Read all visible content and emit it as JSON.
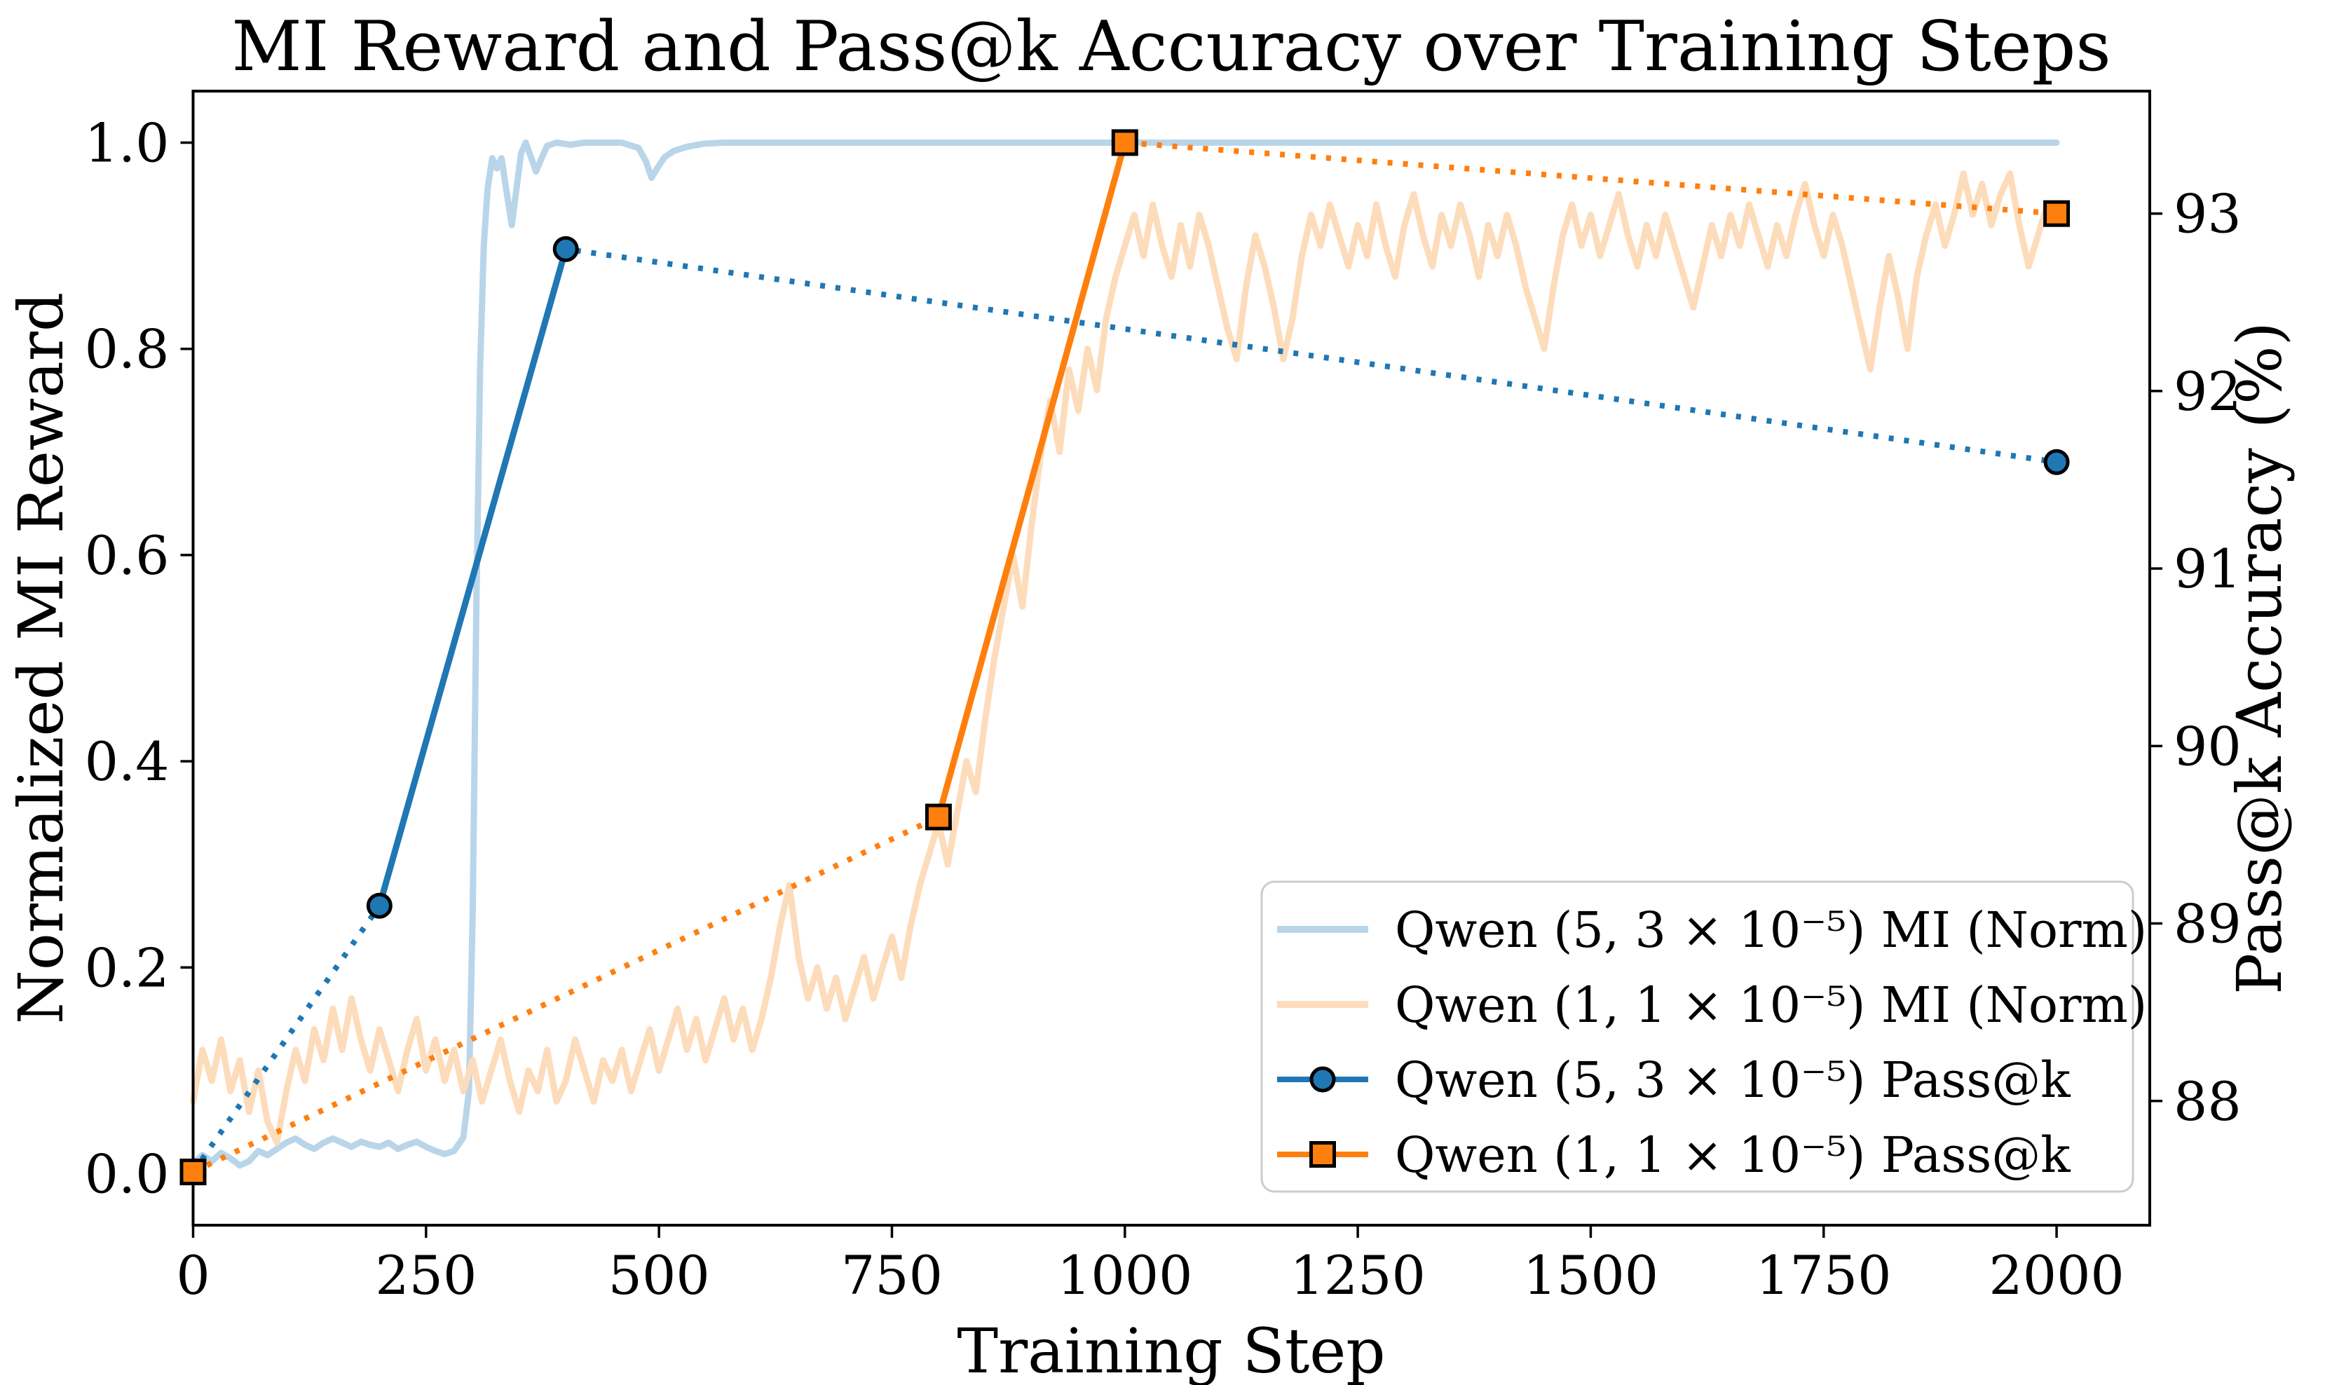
{
  "chart_data": {
    "type": "line",
    "title": "MI Reward and Pass@k Accuracy over Training Steps",
    "xlabel": "Training Step",
    "ylabel_left": "Normalized MI Reward",
    "ylabel_right": "Pass@k Accuracy (%)",
    "xlim": [
      0,
      2100
    ],
    "x_ticks": [
      0,
      250,
      500,
      750,
      1000,
      1250,
      1500,
      1750,
      2000
    ],
    "x_tick_labels": [
      "0",
      "250",
      "500",
      "750",
      "1000",
      "1250",
      "1500",
      "1750",
      "2000"
    ],
    "ylim_left": [
      -0.05,
      1.05
    ],
    "y_ticks_left": [
      0.0,
      0.2,
      0.4,
      0.6,
      0.8,
      1.0
    ],
    "y_tick_labels_left": [
      "0.0",
      "0.2",
      "0.4",
      "0.6",
      "0.8",
      "1.0"
    ],
    "ylim_right": [
      87.3,
      93.69
    ],
    "y_ticks_right": [
      88,
      89,
      90,
      91,
      92,
      93
    ],
    "y_tick_labels_right": [
      "88",
      "89",
      "90",
      "91",
      "92",
      "93"
    ],
    "grid": false,
    "legend_position": "lower right",
    "colors": {
      "mi_fast": "#b9d5ea",
      "mi_slow": "#fddcbb",
      "passk_fast": "#1f77b4",
      "passk_slow": "#ff7f0e",
      "marker_edge": "#000000",
      "legend_border": "#cccccc",
      "axis": "#000000"
    },
    "series": [
      {
        "name": "Qwen (5, 3 × 10⁻⁵) MI (Norm)",
        "axis": "left",
        "style": "solid",
        "color_key": "mi_fast",
        "width": 9,
        "points": [
          [
            0,
            0.01
          ],
          [
            10,
            0.018
          ],
          [
            20,
            0.012
          ],
          [
            30,
            0.02
          ],
          [
            40,
            0.015
          ],
          [
            50,
            0.008
          ],
          [
            60,
            0.012
          ],
          [
            70,
            0.022
          ],
          [
            80,
            0.018
          ],
          [
            90,
            0.024
          ],
          [
            100,
            0.03
          ],
          [
            110,
            0.034
          ],
          [
            120,
            0.028
          ],
          [
            130,
            0.024
          ],
          [
            140,
            0.03
          ],
          [
            150,
            0.034
          ],
          [
            160,
            0.03
          ],
          [
            170,
            0.026
          ],
          [
            180,
            0.031
          ],
          [
            190,
            0.028
          ],
          [
            200,
            0.026
          ],
          [
            210,
            0.03
          ],
          [
            220,
            0.024
          ],
          [
            230,
            0.028
          ],
          [
            240,
            0.031
          ],
          [
            250,
            0.026
          ],
          [
            260,
            0.022
          ],
          [
            270,
            0.019
          ],
          [
            280,
            0.022
          ],
          [
            290,
            0.035
          ],
          [
            296,
            0.08
          ],
          [
            300,
            0.25
          ],
          [
            304,
            0.55
          ],
          [
            308,
            0.78
          ],
          [
            312,
            0.9
          ],
          [
            316,
            0.955
          ],
          [
            321,
            0.985
          ],
          [
            326,
            0.975
          ],
          [
            331,
            0.985
          ],
          [
            336,
            0.955
          ],
          [
            342,
            0.92
          ],
          [
            347,
            0.955
          ],
          [
            352,
            0.99
          ],
          [
            357,
            1.0
          ],
          [
            363,
            0.985
          ],
          [
            368,
            0.972
          ],
          [
            374,
            0.985
          ],
          [
            380,
            0.997
          ],
          [
            390,
            1.0
          ],
          [
            405,
            0.998
          ],
          [
            420,
            1.0
          ],
          [
            440,
            1.0
          ],
          [
            460,
            1.0
          ],
          [
            478,
            0.995
          ],
          [
            486,
            0.982
          ],
          [
            492,
            0.966
          ],
          [
            498,
            0.975
          ],
          [
            506,
            0.986
          ],
          [
            516,
            0.992
          ],
          [
            530,
            0.996
          ],
          [
            548,
            0.999
          ],
          [
            570,
            1.0
          ],
          [
            650,
            1.0
          ],
          [
            750,
            1.0
          ],
          [
            850,
            1.0
          ],
          [
            1000,
            1.0
          ],
          [
            1200,
            1.0
          ],
          [
            1400,
            1.0
          ],
          [
            1600,
            1.0
          ],
          [
            1800,
            1.0
          ],
          [
            2000,
            1.0
          ]
        ]
      },
      {
        "name": "Qwen (1, 1 × 10⁻⁵) MI (Norm)",
        "axis": "left",
        "style": "solid",
        "color_key": "mi_slow",
        "width": 9,
        "points": [
          [
            0,
            0.07
          ],
          [
            10,
            0.12
          ],
          [
            20,
            0.09
          ],
          [
            30,
            0.13
          ],
          [
            40,
            0.08
          ],
          [
            50,
            0.11
          ],
          [
            60,
            0.06
          ],
          [
            70,
            0.1
          ],
          [
            80,
            0.05
          ],
          [
            90,
            0.03
          ],
          [
            100,
            0.08
          ],
          [
            110,
            0.12
          ],
          [
            120,
            0.09
          ],
          [
            130,
            0.14
          ],
          [
            140,
            0.11
          ],
          [
            150,
            0.16
          ],
          [
            160,
            0.12
          ],
          [
            170,
            0.17
          ],
          [
            180,
            0.13
          ],
          [
            190,
            0.1
          ],
          [
            200,
            0.14
          ],
          [
            210,
            0.11
          ],
          [
            220,
            0.08
          ],
          [
            230,
            0.12
          ],
          [
            240,
            0.15
          ],
          [
            250,
            0.1
          ],
          [
            260,
            0.13
          ],
          [
            270,
            0.09
          ],
          [
            280,
            0.12
          ],
          [
            290,
            0.08
          ],
          [
            300,
            0.11
          ],
          [
            310,
            0.07
          ],
          [
            320,
            0.1
          ],
          [
            330,
            0.13
          ],
          [
            340,
            0.09
          ],
          [
            350,
            0.06
          ],
          [
            360,
            0.1
          ],
          [
            370,
            0.08
          ],
          [
            380,
            0.12
          ],
          [
            390,
            0.07
          ],
          [
            400,
            0.09
          ],
          [
            410,
            0.13
          ],
          [
            420,
            0.1
          ],
          [
            430,
            0.07
          ],
          [
            440,
            0.11
          ],
          [
            450,
            0.09
          ],
          [
            460,
            0.12
          ],
          [
            470,
            0.08
          ],
          [
            480,
            0.11
          ],
          [
            490,
            0.14
          ],
          [
            500,
            0.1
          ],
          [
            510,
            0.13
          ],
          [
            520,
            0.16
          ],
          [
            530,
            0.12
          ],
          [
            540,
            0.15
          ],
          [
            550,
            0.11
          ],
          [
            560,
            0.14
          ],
          [
            570,
            0.17
          ],
          [
            580,
            0.13
          ],
          [
            590,
            0.16
          ],
          [
            600,
            0.12
          ],
          [
            610,
            0.15
          ],
          [
            620,
            0.19
          ],
          [
            630,
            0.24
          ],
          [
            640,
            0.28
          ],
          [
            650,
            0.21
          ],
          [
            660,
            0.17
          ],
          [
            670,
            0.2
          ],
          [
            680,
            0.16
          ],
          [
            690,
            0.19
          ],
          [
            700,
            0.15
          ],
          [
            710,
            0.18
          ],
          [
            720,
            0.21
          ],
          [
            730,
            0.17
          ],
          [
            740,
            0.2
          ],
          [
            750,
            0.23
          ],
          [
            760,
            0.19
          ],
          [
            770,
            0.24
          ],
          [
            780,
            0.28
          ],
          [
            790,
            0.31
          ],
          [
            800,
            0.34
          ],
          [
            810,
            0.3
          ],
          [
            820,
            0.35
          ],
          [
            830,
            0.4
          ],
          [
            840,
            0.37
          ],
          [
            850,
            0.44
          ],
          [
            860,
            0.5
          ],
          [
            870,
            0.55
          ],
          [
            880,
            0.6
          ],
          [
            890,
            0.55
          ],
          [
            900,
            0.63
          ],
          [
            910,
            0.7
          ],
          [
            920,
            0.75
          ],
          [
            930,
            0.7
          ],
          [
            940,
            0.78
          ],
          [
            950,
            0.74
          ],
          [
            960,
            0.8
          ],
          [
            970,
            0.76
          ],
          [
            980,
            0.83
          ],
          [
            990,
            0.87
          ],
          [
            1000,
            0.9
          ],
          [
            1010,
            0.93
          ],
          [
            1020,
            0.89
          ],
          [
            1030,
            0.94
          ],
          [
            1040,
            0.9
          ],
          [
            1050,
            0.87
          ],
          [
            1060,
            0.92
          ],
          [
            1070,
            0.88
          ],
          [
            1080,
            0.93
          ],
          [
            1090,
            0.9
          ],
          [
            1100,
            0.86
          ],
          [
            1110,
            0.82
          ],
          [
            1120,
            0.79
          ],
          [
            1130,
            0.86
          ],
          [
            1140,
            0.91
          ],
          [
            1150,
            0.88
          ],
          [
            1160,
            0.84
          ],
          [
            1170,
            0.79
          ],
          [
            1180,
            0.83
          ],
          [
            1190,
            0.89
          ],
          [
            1200,
            0.93
          ],
          [
            1210,
            0.9
          ],
          [
            1220,
            0.94
          ],
          [
            1230,
            0.91
          ],
          [
            1240,
            0.88
          ],
          [
            1250,
            0.92
          ],
          [
            1260,
            0.89
          ],
          [
            1270,
            0.94
          ],
          [
            1280,
            0.9
          ],
          [
            1290,
            0.87
          ],
          [
            1300,
            0.92
          ],
          [
            1310,
            0.95
          ],
          [
            1320,
            0.91
          ],
          [
            1330,
            0.88
          ],
          [
            1340,
            0.93
          ],
          [
            1350,
            0.9
          ],
          [
            1360,
            0.94
          ],
          [
            1370,
            0.91
          ],
          [
            1380,
            0.87
          ],
          [
            1390,
            0.92
          ],
          [
            1400,
            0.89
          ],
          [
            1410,
            0.93
          ],
          [
            1420,
            0.9
          ],
          [
            1430,
            0.86
          ],
          [
            1440,
            0.83
          ],
          [
            1450,
            0.8
          ],
          [
            1460,
            0.86
          ],
          [
            1470,
            0.91
          ],
          [
            1480,
            0.94
          ],
          [
            1490,
            0.9
          ],
          [
            1500,
            0.93
          ],
          [
            1510,
            0.89
          ],
          [
            1520,
            0.92
          ],
          [
            1530,
            0.95
          ],
          [
            1540,
            0.91
          ],
          [
            1550,
            0.88
          ],
          [
            1560,
            0.92
          ],
          [
            1570,
            0.89
          ],
          [
            1580,
            0.93
          ],
          [
            1590,
            0.9
          ],
          [
            1600,
            0.87
          ],
          [
            1610,
            0.84
          ],
          [
            1620,
            0.88
          ],
          [
            1630,
            0.92
          ],
          [
            1640,
            0.89
          ],
          [
            1650,
            0.93
          ],
          [
            1660,
            0.9
          ],
          [
            1670,
            0.94
          ],
          [
            1680,
            0.91
          ],
          [
            1690,
            0.88
          ],
          [
            1700,
            0.92
          ],
          [
            1710,
            0.89
          ],
          [
            1720,
            0.93
          ],
          [
            1730,
            0.96
          ],
          [
            1740,
            0.92
          ],
          [
            1750,
            0.89
          ],
          [
            1760,
            0.93
          ],
          [
            1770,
            0.9
          ],
          [
            1780,
            0.86
          ],
          [
            1790,
            0.82
          ],
          [
            1800,
            0.78
          ],
          [
            1810,
            0.84
          ],
          [
            1820,
            0.89
          ],
          [
            1830,
            0.85
          ],
          [
            1840,
            0.8
          ],
          [
            1850,
            0.87
          ],
          [
            1860,
            0.91
          ],
          [
            1870,
            0.94
          ],
          [
            1880,
            0.9
          ],
          [
            1890,
            0.93
          ],
          [
            1900,
            0.97
          ],
          [
            1910,
            0.93
          ],
          [
            1920,
            0.96
          ],
          [
            1930,
            0.92
          ],
          [
            1940,
            0.95
          ],
          [
            1950,
            0.97
          ],
          [
            1960,
            0.92
          ],
          [
            1970,
            0.88
          ],
          [
            1980,
            0.91
          ],
          [
            1990,
            0.94
          ],
          [
            2000,
            0.93
          ]
        ]
      },
      {
        "name": "Qwen (5, 3 × 10⁻⁵) Pass@k",
        "axis": "right",
        "style": "dotted",
        "solid_segment": [
          1,
          2
        ],
        "marker": "circle",
        "color_key": "passk_fast",
        "width": 9,
        "points": [
          [
            0,
            87.6
          ],
          [
            200,
            89.1
          ],
          [
            400,
            92.8
          ],
          [
            2000,
            91.6
          ]
        ]
      },
      {
        "name": "Qwen (1, 1 × 10⁻⁵) Pass@k",
        "axis": "right",
        "style": "dotted",
        "solid_segment": [
          1,
          2
        ],
        "marker": "square",
        "color_key": "passk_slow",
        "width": 9,
        "points": [
          [
            0,
            87.6
          ],
          [
            800,
            89.6
          ],
          [
            1000,
            93.4
          ],
          [
            2000,
            93.0
          ]
        ]
      }
    ],
    "legend_labels": [
      "Qwen (5, 3 × 10⁻⁵) MI (Norm)",
      "Qwen (1, 1 × 10⁻⁵) MI (Norm)",
      "Qwen (5, 3 × 10⁻⁵) Pass@k",
      "Qwen (1, 1 × 10⁻⁵) Pass@k"
    ]
  }
}
